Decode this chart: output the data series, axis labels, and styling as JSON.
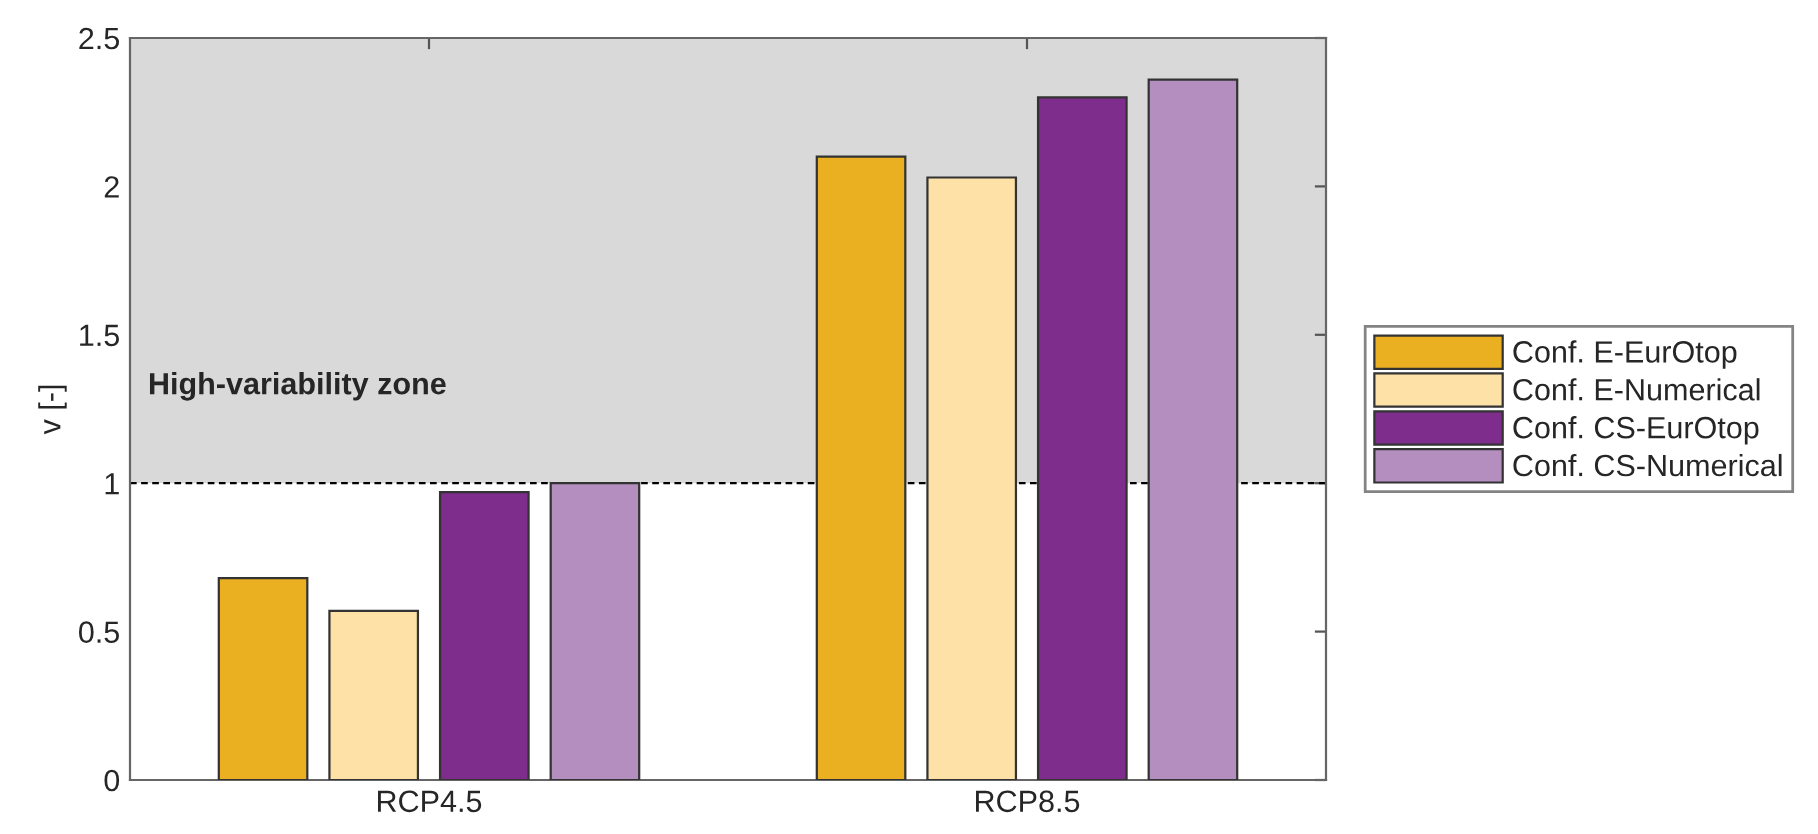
{
  "chart_data": {
    "type": "bar",
    "ylabel": "v [-]",
    "categories": [
      "RCP4.5",
      "RCP8.5"
    ],
    "series": [
      {
        "name": "Conf. E-EurOtop",
        "color": "#ebb022",
        "values": [
          0.68,
          2.1
        ]
      },
      {
        "name": "Conf. E-Numerical",
        "color": "#fde1a6",
        "values": [
          0.57,
          2.03
        ]
      },
      {
        "name": "Conf. CS-EurOtop",
        "color": "#7e2d8c",
        "values": [
          0.97,
          2.3
        ]
      },
      {
        "name": "Conf. CS-Numerical",
        "color": "#b48ebf",
        "values": [
          1.0,
          2.36
        ]
      }
    ],
    "ylim": [
      0,
      2.5
    ],
    "yticks": [
      0,
      0.5,
      1,
      1.5,
      2,
      2.5
    ],
    "bands": [
      {
        "axis": "y",
        "from": 1,
        "to": 2.5,
        "label": "High-variability zone",
        "color": "#d9d9d9"
      }
    ],
    "ref_lines": [
      {
        "axis": "y",
        "value": 1,
        "line_style": "dashed",
        "color": "#000000"
      }
    ],
    "grid": false,
    "legend": "right"
  }
}
